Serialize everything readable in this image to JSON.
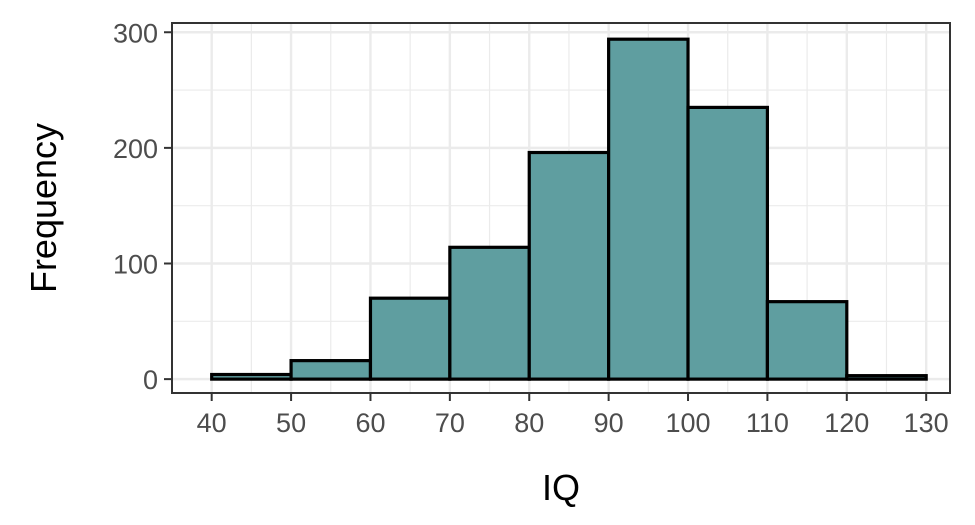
{
  "chart_data": {
    "type": "bar",
    "xlabel": "IQ",
    "ylabel": "Frequency",
    "xlim": [
      35,
      133
    ],
    "ylim": [
      -12,
      308
    ],
    "x_ticks": [
      40,
      50,
      60,
      70,
      80,
      90,
      100,
      110,
      120,
      130
    ],
    "y_ticks": [
      0,
      100,
      200,
      300
    ],
    "bins": [
      {
        "start": 40,
        "end": 50,
        "count": 4
      },
      {
        "start": 50,
        "end": 60,
        "count": 16
      },
      {
        "start": 60,
        "end": 70,
        "count": 70
      },
      {
        "start": 70,
        "end": 80,
        "count": 114
      },
      {
        "start": 80,
        "end": 90,
        "count": 196
      },
      {
        "start": 90,
        "end": 100,
        "count": 294
      },
      {
        "start": 100,
        "end": 110,
        "count": 235
      },
      {
        "start": 110,
        "end": 120,
        "count": 67
      },
      {
        "start": 120,
        "end": 130,
        "count": 3
      }
    ],
    "bar_fill": "#5f9ea0",
    "bar_stroke": "#000000",
    "grid": true,
    "theme": "bw"
  }
}
